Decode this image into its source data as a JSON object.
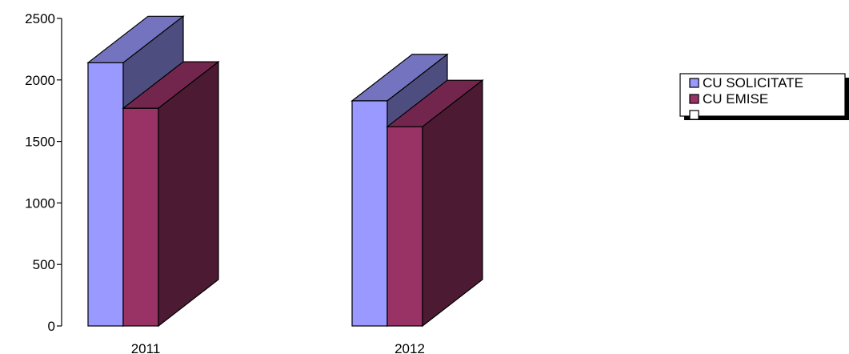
{
  "chart_data": {
    "type": "bar",
    "style": "3d-clustered-column",
    "categories": [
      "2011",
      "2012"
    ],
    "series": [
      {
        "name": "CU SOLICITATE",
        "values": [
          2140,
          1830
        ],
        "color": "#9999ff"
      },
      {
        "name": "CU EMISE",
        "values": [
          1770,
          1620
        ],
        "color": "#993366"
      },
      {
        "name": "",
        "values": [
          null,
          null
        ],
        "color": "#ffffff"
      }
    ],
    "ylim": [
      0,
      2500
    ],
    "yticks": [
      "0",
      "500",
      "1000",
      "1500",
      "2000",
      "2500"
    ],
    "grid": false,
    "legend": {
      "position": "right"
    },
    "title": "",
    "xlabel": "",
    "ylabel": ""
  }
}
